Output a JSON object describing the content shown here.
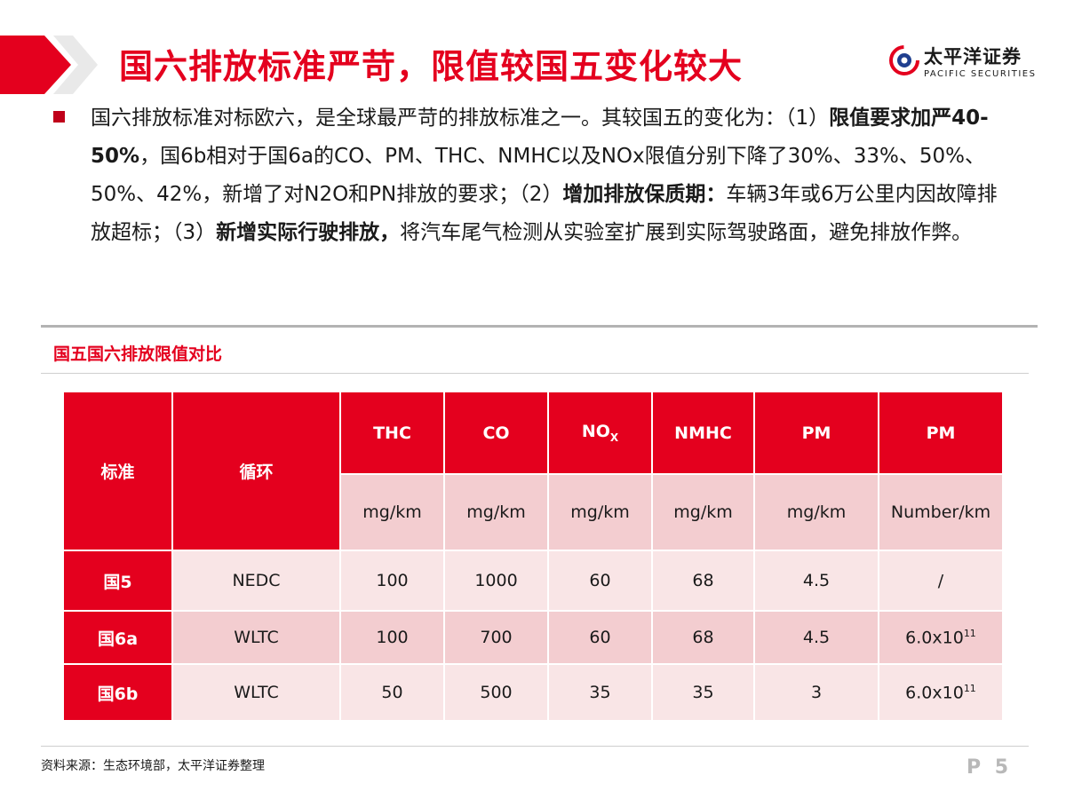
{
  "header": {
    "title": "国六排放标准严苛，限值较国五变化较大",
    "logo_cn": "太平洋证券",
    "logo_en": "PACIFIC SECURITIES"
  },
  "bullet": {
    "p1": "国六排放标准对标欧六，是全球最严苛的排放标准之一。其较国五的变化为：（1）",
    "b1": "限值要求加严40-50%",
    "p2": "，国6b相对于国6a的CO、PM、THC、NMHC以及NOx限值分别下降了30%、33%、50%、50%、42%，新增了对N2O和PN排放的要求；（2）",
    "b2": "增加排放保质期：",
    "p3": "车辆3年或6万公里内因故障排放超标；（3）",
    "b3": "新增实际行驶排放，",
    "p4": "将汽车尾气检测从实验室扩展到实际驾驶路面，避免排放作弊。"
  },
  "section": {
    "title": "国五国六排放限值对比"
  },
  "table": {
    "col_standard": "标准",
    "col_cycle": "循环",
    "col_thc": "THC",
    "col_co": "CO",
    "col_nox_main": "NO",
    "col_nox_sub": "X",
    "col_nmhc": "NMHC",
    "col_pm_mass": "PM",
    "col_pm_num": "PM",
    "units": [
      "mg/km",
      "mg/km",
      "mg/km",
      "mg/km",
      "mg/km",
      "Number/km"
    ],
    "rows": [
      {
        "standard": "国5",
        "cycle": "NEDC",
        "thc": "100",
        "co": "1000",
        "nox": "60",
        "nmhc": "68",
        "pm": "4.5",
        "pn": "/",
        "pn_exp": ""
      },
      {
        "standard": "国6a",
        "cycle": "WLTC",
        "thc": "100",
        "co": "700",
        "nox": "60",
        "nmhc": "68",
        "pm": "4.5",
        "pn": "6.0x10",
        "pn_exp": "11"
      },
      {
        "standard": "国6b",
        "cycle": "WLTC",
        "thc": "50",
        "co": "500",
        "nox": "35",
        "nmhc": "35",
        "pm": "3",
        "pn": "6.0x10",
        "pn_exp": "11"
      }
    ]
  },
  "footer": {
    "source": "资料来源：生态环境部，太平洋证券整理",
    "page": "P 5"
  },
  "colors": {
    "accent": "#e4001e",
    "unit_fill": "#f3cdd0",
    "light_fill": "#f9e5e6"
  }
}
